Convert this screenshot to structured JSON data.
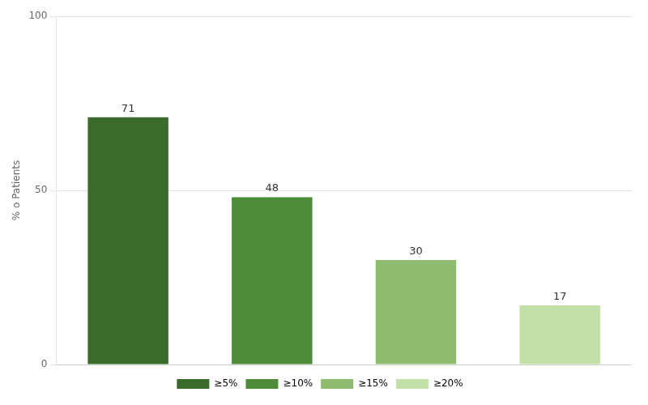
{
  "chart_data": {
    "type": "bar",
    "categories": [
      "≥5%",
      "≥10%",
      "≥15%",
      "≥20%"
    ],
    "values": [
      71,
      48,
      30,
      17
    ],
    "colors": [
      "#3a6b2a",
      "#4e8c3a",
      "#8fbc6e",
      "#c2e0a8"
    ],
    "ylabel": "% o Patients",
    "ylim": [
      0,
      100
    ],
    "yticks": [
      0,
      50,
      100
    ],
    "grid": true,
    "data_labels": true,
    "legend": "bottom",
    "tick_labels": "y"
  }
}
